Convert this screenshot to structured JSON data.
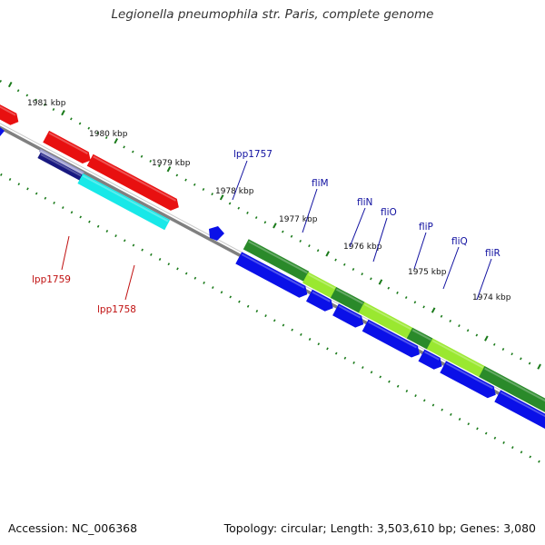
{
  "title": "Legionella pneumophila str. Paris, complete genome",
  "footer": {
    "accession": "Accession: NC_006368",
    "summary": "Topology: circular; Length: 3,503,610 bp; Genes: 3,080"
  },
  "colors": {
    "red_genes": "#e81010",
    "cyan_gene": "#18e8e8",
    "navy_gene": "#181880",
    "blue_genes": "#0a10e8",
    "dark_green": "#2a8a2a",
    "light_green": "#9ae830",
    "tick_green": "#1a7a1a",
    "backbone": "#808080",
    "label_red": "#c01010",
    "label_blue": "#1010a0"
  },
  "tick_labels": [
    "1981 kbp",
    "1980 kbp",
    "1979 kbp",
    "1978 kbp",
    "1977 kbp",
    "1976 kbp",
    "1975 kbp",
    "1974 kbp"
  ],
  "gene_labels": [
    {
      "text": "lpp1759",
      "color": "red"
    },
    {
      "text": "lpp1758",
      "color": "red"
    },
    {
      "text": "lpp1757",
      "color": "blue"
    },
    {
      "text": "fliM",
      "color": "blue"
    },
    {
      "text": "fliN",
      "color": "blue"
    },
    {
      "text": "fliO",
      "color": "blue"
    },
    {
      "text": "fliP",
      "color": "blue"
    },
    {
      "text": "fliQ",
      "color": "blue"
    },
    {
      "text": "fliR",
      "color": "blue"
    }
  ]
}
